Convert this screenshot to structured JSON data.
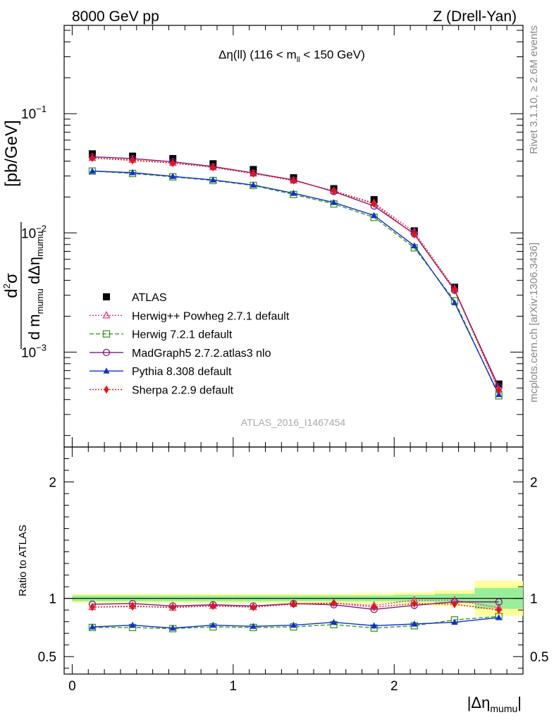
{
  "header": {
    "left": "8000 GeV pp",
    "right": "Z (Drell-Yan)"
  },
  "side": {
    "rivet": "Rivet 3.1.10, ≥ 2.6M events",
    "mcplots": "mcplots.cern.ch [arXiv:1306.3436]"
  },
  "chart_data": [
    {
      "type": "scatter",
      "panel": "main",
      "title_main": "Δη(ll) (116 < m",
      "title_sub": "ll",
      "title_end": " < 150 GeV)",
      "ylabel": "d²σ / d m_mumu dΔη_mumu [pb/GeV]",
      "ylabel_parts": {
        "num_d": "d",
        "num_exp": "2",
        "num_sigma": "σ",
        "den": "d m",
        "den_sub1": "mumu",
        "den_mid": " dΔη",
        "den_sub2": "mumu",
        "unit": "[pb/GeV]"
      },
      "yscale": "log",
      "ylim": [
        0.00016,
        0.55
      ],
      "xlim": [
        -0.05,
        2.8
      ],
      "ytick_labels": [
        {
          "base": "10",
          "exp": "−1",
          "value": 0.1
        },
        {
          "base": "10",
          "exp": "−2",
          "value": 0.01
        },
        {
          "base": "10",
          "exp": "−3",
          "value": 0.001
        }
      ],
      "watermark": "ATLAS_2016_I1467454",
      "x": [
        0.125,
        0.375,
        0.625,
        0.875,
        1.125,
        1.375,
        1.625,
        1.875,
        2.125,
        2.375,
        2.65
      ],
      "legend_position": "center-left",
      "series": [
        {
          "name": "ATLAS",
          "color": "#000000",
          "marker": "square-filled",
          "line": "none",
          "values": [
            0.046,
            0.044,
            0.042,
            0.038,
            0.034,
            0.029,
            0.0235,
            0.019,
            0.0104,
            0.0035,
            0.00054
          ]
        },
        {
          "name": "Herwig++ Powheg 2.7.1 default",
          "color": "#e0407a",
          "marker": "triangle-open",
          "line": "dotted",
          "values": [
            0.0425,
            0.041,
            0.0385,
            0.0355,
            0.0315,
            0.0275,
            0.0225,
            0.0178,
            0.0102,
            0.0034,
            0.00049
          ]
        },
        {
          "name": "Herwig 7.2.1 default",
          "color": "#3a9a20",
          "marker": "square-open",
          "line": "dashed",
          "values": [
            0.033,
            0.0315,
            0.0295,
            0.0275,
            0.025,
            0.021,
            0.0175,
            0.0135,
            0.0075,
            0.0027,
            0.00043
          ]
        },
        {
          "name": "MadGraph5 2.7.2.atlas3 nlo",
          "color": "#7a1a7a",
          "marker": "circle-open",
          "line": "solid",
          "values": [
            0.0435,
            0.042,
            0.0395,
            0.036,
            0.0318,
            0.0278,
            0.0222,
            0.0168,
            0.0098,
            0.0033,
            0.00051
          ]
        },
        {
          "name": "Pythia 8.308 default",
          "color": "#1030d0",
          "marker": "triangle-filled",
          "line": "solid",
          "values": [
            0.033,
            0.032,
            0.0298,
            0.0278,
            0.0252,
            0.0215,
            0.018,
            0.014,
            0.0078,
            0.0026,
            0.00044
          ]
        },
        {
          "name": "Sherpa 2.2.9 default",
          "color": "#ee1111",
          "marker": "diamond-filled",
          "line": "dotted",
          "values": [
            0.0425,
            0.0405,
            0.0385,
            0.0355,
            0.0315,
            0.0275,
            0.0225,
            0.0175,
            0.0097,
            0.0033,
            0.00048
          ]
        }
      ]
    },
    {
      "type": "scatter",
      "panel": "ratio",
      "ylabel": "Ratio to ATLAS",
      "xlabel_main": "|Δη",
      "xlabel_sub": "mumu",
      "xlabel_end": "|",
      "ylim": [
        0.35,
        2.3
      ],
      "xlim": [
        -0.05,
        2.8
      ],
      "xtick_labels": [
        {
          "label": "0",
          "value": 0
        },
        {
          "label": "1",
          "value": 1
        },
        {
          "label": "2",
          "value": 2
        }
      ],
      "ytick_labels": [
        {
          "label": "0.5",
          "value": 0.5
        },
        {
          "label": "1",
          "value": 1
        },
        {
          "label": "2",
          "value": 2
        }
      ],
      "bands": {
        "edges": [
          0.0,
          0.25,
          0.5,
          0.75,
          1.0,
          1.25,
          1.5,
          1.75,
          2.0,
          2.25,
          2.5,
          2.8
        ],
        "stat_half": [
          0.025,
          0.025,
          0.025,
          0.025,
          0.025,
          0.025,
          0.025,
          0.025,
          0.03,
          0.04,
          0.09
        ],
        "tot_half": [
          0.04,
          0.04,
          0.04,
          0.04,
          0.04,
          0.04,
          0.04,
          0.045,
          0.05,
          0.07,
          0.15
        ],
        "stat_color": "#99ee99",
        "tot_color": "#ffff99"
      },
      "x": [
        0.125,
        0.375,
        0.625,
        0.875,
        1.125,
        1.375,
        1.625,
        1.875,
        2.125,
        2.375,
        2.65
      ],
      "series": [
        {
          "name": "Herwig++ Powheg 2.7.1 default",
          "color": "#e0407a",
          "marker": "triangle-open",
          "line": "dotted",
          "values": [
            0.925,
            0.935,
            0.92,
            0.935,
            0.925,
            0.955,
            0.96,
            0.94,
            0.985,
            0.985,
            0.92
          ]
        },
        {
          "name": "Herwig 7.2.1 default",
          "color": "#3a9a20",
          "marker": "square-open",
          "line": "dashed",
          "values": [
            0.75,
            0.75,
            0.74,
            0.755,
            0.75,
            0.755,
            0.775,
            0.745,
            0.765,
            0.815,
            0.845
          ]
        },
        {
          "name": "MadGraph5 2.7.2.atlas3 nlo",
          "color": "#7a1a7a",
          "marker": "circle-open",
          "line": "solid",
          "values": [
            0.95,
            0.955,
            0.935,
            0.945,
            0.935,
            0.955,
            0.945,
            0.905,
            0.94,
            0.97,
            0.97
          ]
        },
        {
          "name": "Pythia 8.308 default",
          "color": "#1030d0",
          "marker": "triangle-filled",
          "line": "solid",
          "values": [
            0.755,
            0.77,
            0.745,
            0.77,
            0.76,
            0.77,
            0.795,
            0.765,
            0.78,
            0.795,
            0.835
          ]
        },
        {
          "name": "Sherpa 2.2.9 default",
          "color": "#ee1111",
          "marker": "diamond-filled",
          "line": "dotted",
          "values": [
            0.925,
            0.93,
            0.925,
            0.935,
            0.925,
            0.95,
            0.96,
            0.925,
            0.955,
            0.95,
            0.9
          ]
        }
      ]
    }
  ]
}
